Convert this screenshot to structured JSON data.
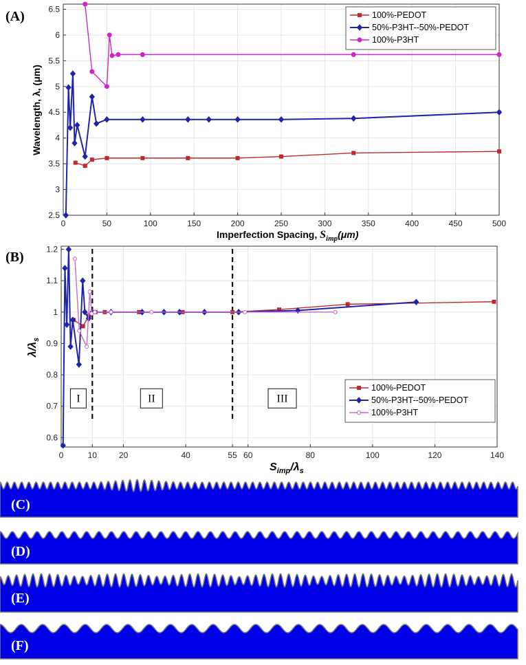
{
  "chart_data": [
    {
      "panel": "(A)",
      "type": "line",
      "xlabel": "Imperfection Spacing, ",
      "xlabel_math": "S",
      "xlabel_sub": "imp",
      "xlabel_unit": "(μm)",
      "ylabel": "Wavelength, λ, (μm)",
      "xlim": [
        0,
        500
      ],
      "ylim": [
        2.5,
        6.6
      ],
      "xticks": [
        0,
        50,
        100,
        150,
        200,
        250,
        300,
        350,
        400,
        450,
        500
      ],
      "yticks": [
        2.5,
        3,
        3.5,
        4,
        4.5,
        5,
        5.5,
        6,
        6.5
      ],
      "legend": [
        "100%-PEDOT",
        "50%-P3HT--50%-PEDOT",
        "100%-P3HT"
      ],
      "series": [
        {
          "name": "100%-PEDOT",
          "color": "#c0282d",
          "marker": "square",
          "x": [
            14,
            25,
            33,
            50,
            91,
            143,
            200,
            250,
            333,
            500
          ],
          "y": [
            3.52,
            3.46,
            3.58,
            3.61,
            3.61,
            3.61,
            3.61,
            3.64,
            3.71,
            3.74
          ]
        },
        {
          "name": "50%-P3HT--50%-PEDOT",
          "color": "#1f24a8",
          "marker": "diamond",
          "x": [
            3,
            6,
            8,
            11,
            13,
            16,
            25,
            33,
            38,
            50,
            91,
            143,
            167,
            200,
            250,
            333,
            500
          ],
          "y": [
            2.5,
            4.98,
            4.2,
            5.25,
            3.9,
            4.25,
            3.64,
            4.8,
            4.28,
            4.36,
            4.36,
            4.36,
            4.36,
            4.36,
            4.36,
            4.38,
            4.5
          ]
        },
        {
          "name": "100%-P3HT",
          "color": "#d024c8",
          "marker": "circle",
          "x": [
            25,
            33,
            50,
            53,
            56,
            63,
            91,
            333,
            500
          ],
          "y": [
            6.6,
            5.29,
            5.0,
            6.0,
            5.6,
            5.62,
            5.62,
            5.62,
            5.62
          ]
        }
      ]
    },
    {
      "panel": "(B)",
      "type": "line",
      "xlabel_math": "S",
      "xlabel_sub": "imp",
      "xlabel_den": "λ",
      "xlabel_den_sub": "s",
      "ylabel_math": "λ",
      "ylabel_den": "λ",
      "ylabel_den_sub": "s",
      "xlim": [
        0,
        140
      ],
      "ylim": [
        0.57,
        1.21
      ],
      "xticks": [
        0,
        10,
        20,
        40,
        55,
        60,
        80,
        100,
        120,
        140
      ],
      "yticks": [
        0.6,
        0.7,
        0.8,
        0.9,
        1,
        1.1,
        1.2
      ],
      "vlines": [
        10,
        55
      ],
      "regions": [
        {
          "label": "I",
          "x": 5.5,
          "y": 0.725
        },
        {
          "label": "II",
          "x": 29,
          "y": 0.725
        },
        {
          "label": "III",
          "x": 71,
          "y": 0.725
        }
      ],
      "legend": [
        "100%-PEDOT",
        "50%-P3HT--50%-PEDOT",
        "100%-P3HT"
      ],
      "series": [
        {
          "name": "100%-PEDOT",
          "color": "#c0282d",
          "marker": "square",
          "x": [
            4,
            7,
            9,
            11,
            14,
            25,
            39,
            55,
            70,
            92,
            139
          ],
          "y": [
            0.975,
            0.955,
            0.99,
            1.0,
            1.0,
            1.0,
            1.0,
            1.0,
            1.008,
            1.025,
            1.033
          ]
        },
        {
          "name": "50%-P3HT--50%-PEDOT",
          "color": "#1f24a8",
          "marker": "diamond",
          "x": [
            0.6,
            1.2,
            1.8,
            2.4,
            3,
            3.7,
            5.7,
            6.9,
            7.6,
            8.8,
            10,
            16,
            26,
            33,
            38,
            46,
            57,
            76,
            114
          ],
          "y": [
            0.575,
            1.14,
            0.96,
            1.2,
            0.89,
            0.975,
            0.833,
            1.1,
            1.0,
            0.98,
            1.0,
            1.0,
            1.0,
            1.0,
            1.0,
            1.0,
            1.0,
            1.005,
            1.032
          ]
        },
        {
          "name": "100%-P3HT",
          "color": "#cc66cc",
          "marker": "circle-open",
          "x": [
            4.4,
            5.8,
            8.2,
            9.2,
            9.8,
            10.8,
            16,
            29,
            59,
            88
          ],
          "y": [
            1.17,
            0.94,
            0.89,
            1.065,
            0.995,
            1.0,
            1.0,
            1.0,
            1.0,
            1.0
          ]
        }
      ]
    }
  ],
  "strips": [
    {
      "label": "(C)"
    },
    {
      "label": "(D)"
    },
    {
      "label": "(E)"
    },
    {
      "label": "(F)"
    }
  ]
}
